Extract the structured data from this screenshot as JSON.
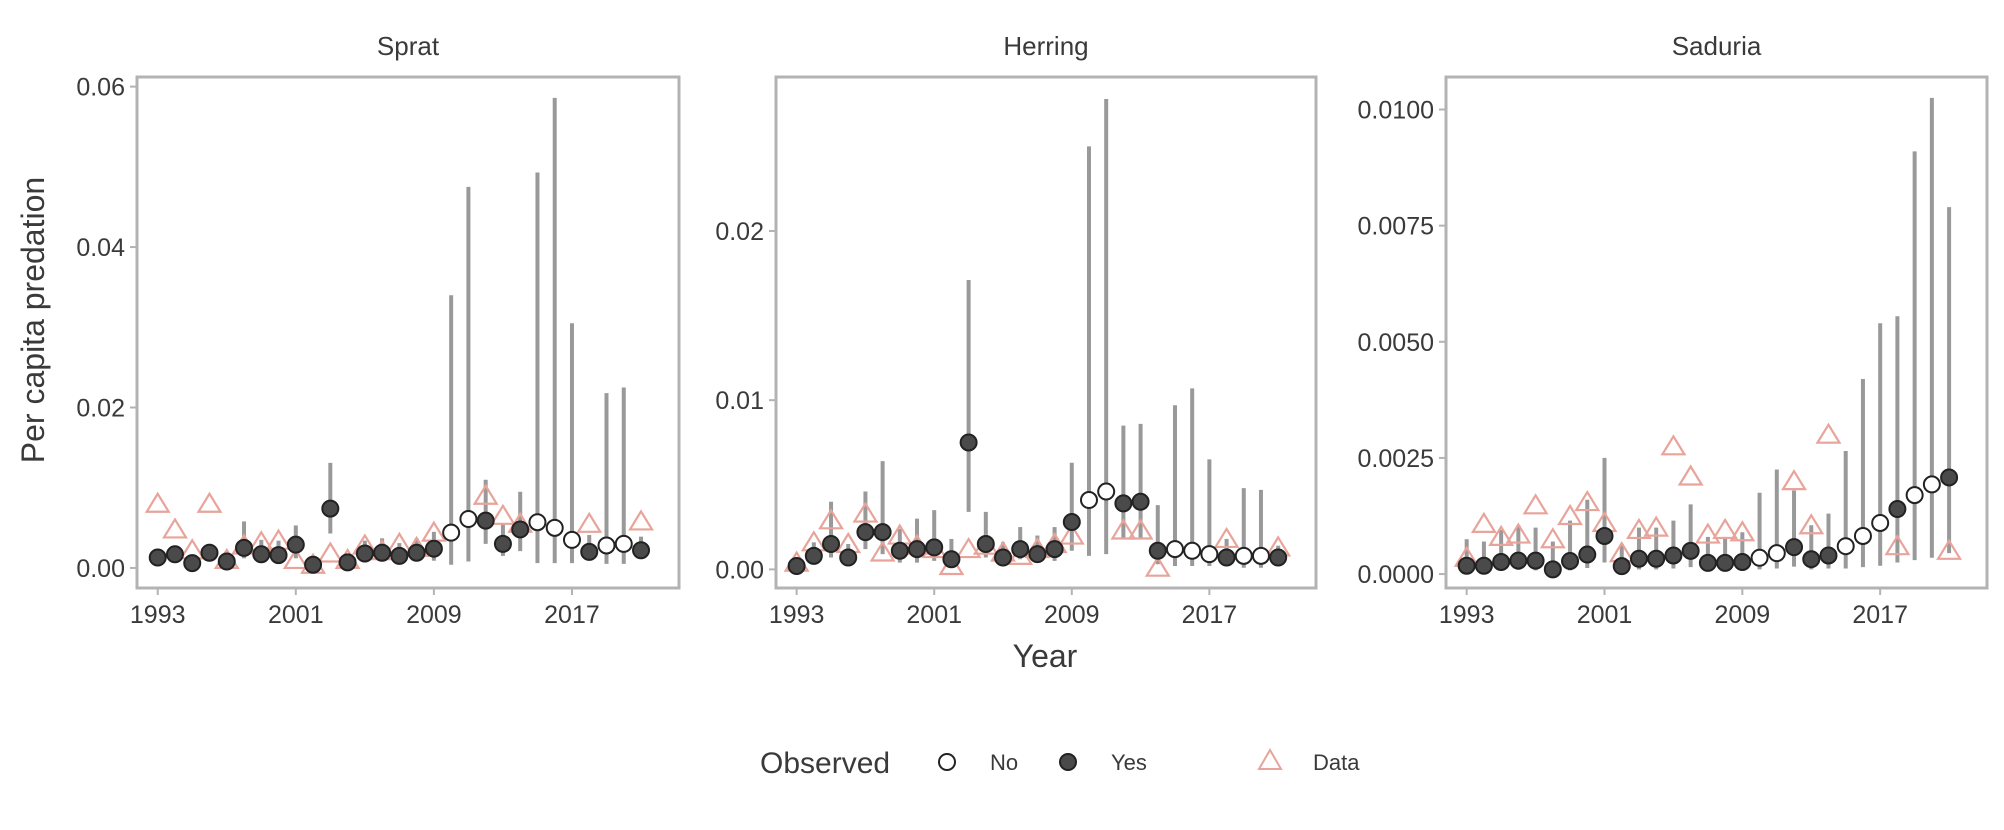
{
  "figure": {
    "x_label": "Year",
    "y_label": "Per capita predation"
  },
  "legend": {
    "title": "Observed",
    "items": [
      {
        "label": "No",
        "key": "no"
      },
      {
        "label": "Yes",
        "key": "yes"
      },
      {
        "label": "Data",
        "key": "data"
      }
    ]
  },
  "colors": {
    "estimate_fill_yes": "#4a4a4a",
    "estimate_stroke": "#222222",
    "error_bar": "#999999",
    "data_triangle": "#e8a49a",
    "panel_border": "#b3b3b3",
    "text": "#3a3a3a"
  },
  "chart_data": [
    {
      "type": "scatter",
      "title": "Sprat",
      "xlim": [
        1991.8,
        2023.2
      ],
      "ylim": [
        -0.0025,
        0.0612
      ],
      "x_ticks": [
        1993,
        2001,
        2009,
        2017
      ],
      "y_ticks": [
        0.0,
        0.02,
        0.04,
        0.06
      ],
      "y_tick_labels": [
        "0.00",
        "0.02",
        "0.04",
        "0.06"
      ],
      "years": [
        1993,
        1994,
        1995,
        1996,
        1997,
        1998,
        1999,
        2000,
        2001,
        2002,
        2003,
        2004,
        2005,
        2006,
        2007,
        2008,
        2009,
        2010,
        2011,
        2012,
        2013,
        2014,
        2015,
        2016,
        2017,
        2018,
        2019,
        2020,
        2021
      ],
      "estimate": [
        0.0013,
        0.0017,
        0.0006,
        0.0019,
        0.0008,
        0.0025,
        0.0017,
        0.0016,
        0.0029,
        0.0004,
        0.0074,
        0.0007,
        0.0018,
        0.0019,
        0.0015,
        0.0019,
        0.0024,
        0.0044,
        0.0061,
        0.0059,
        0.003,
        0.0048,
        0.0057,
        0.005,
        0.0035,
        0.002,
        0.0028,
        0.003,
        0.0022
      ],
      "lower": [
        0.0007,
        0.0009,
        0.0002,
        0.001,
        0.0004,
        0.0012,
        0.0008,
        0.0007,
        0.0012,
        0.0001,
        0.0043,
        0.0002,
        0.0007,
        0.0008,
        0.0006,
        0.0008,
        0.0009,
        0.0004,
        0.0008,
        0.003,
        0.0015,
        0.0021,
        0.0006,
        0.0006,
        0.0006,
        0.001,
        0.0005,
        0.0005,
        0.0011
      ],
      "upper": [
        0.0022,
        0.0028,
        0.0013,
        0.003,
        0.0017,
        0.0058,
        0.0035,
        0.0034,
        0.0053,
        0.0013,
        0.0131,
        0.0016,
        0.0034,
        0.0037,
        0.0031,
        0.0037,
        0.0045,
        0.034,
        0.0475,
        0.011,
        0.0055,
        0.0095,
        0.0493,
        0.0586,
        0.0305,
        0.0041,
        0.0218,
        0.0225,
        0.0039
      ],
      "observed": [
        true,
        true,
        true,
        true,
        true,
        true,
        true,
        true,
        true,
        true,
        true,
        true,
        true,
        true,
        true,
        true,
        true,
        false,
        false,
        true,
        true,
        true,
        false,
        false,
        false,
        true,
        false,
        false,
        true
      ],
      "data_values": [
        0.008,
        0.0048,
        0.0022,
        0.008,
        0.001,
        0.0028,
        0.0032,
        0.0034,
        0.001,
        0.0004,
        0.0018,
        0.001,
        0.0028,
        0.0021,
        0.003,
        0.0025,
        0.0044,
        null,
        null,
        0.009,
        0.0065,
        0.0055,
        null,
        null,
        null,
        0.0055,
        null,
        null,
        0.0058
      ]
    },
    {
      "type": "scatter",
      "title": "Herring",
      "xlim": [
        1991.8,
        2023.2
      ],
      "ylim": [
        -0.0011,
        0.0291
      ],
      "x_ticks": [
        1993,
        2001,
        2009,
        2017
      ],
      "y_ticks": [
        0.0,
        0.01,
        0.02
      ],
      "y_tick_labels": [
        "0.00",
        "0.01",
        "0.02"
      ],
      "years": [
        1993,
        1994,
        1995,
        1996,
        1997,
        1998,
        1999,
        2000,
        2001,
        2002,
        2003,
        2004,
        2005,
        2006,
        2007,
        2008,
        2009,
        2010,
        2011,
        2012,
        2013,
        2014,
        2015,
        2016,
        2017,
        2018,
        2019,
        2020,
        2021
      ],
      "estimate": [
        0.0002,
        0.0008,
        0.0015,
        0.0007,
        0.0022,
        0.0022,
        0.0011,
        0.0012,
        0.0013,
        0.0006,
        0.0075,
        0.0015,
        0.0007,
        0.0012,
        0.0009,
        0.0012,
        0.0028,
        0.0041,
        0.0046,
        0.0039,
        0.004,
        0.0011,
        0.0012,
        0.0011,
        0.0009,
        0.0007,
        0.0008,
        0.0008,
        0.0007
      ],
      "lower": [
        0.0,
        0.0003,
        0.0007,
        0.0002,
        0.0012,
        0.0009,
        0.0004,
        0.0004,
        0.0005,
        0.0002,
        0.0034,
        0.0007,
        0.0002,
        0.0006,
        0.0004,
        0.0005,
        0.0011,
        0.0008,
        0.0009,
        0.0018,
        0.0018,
        0.0003,
        0.0002,
        0.0002,
        0.0002,
        0.0002,
        0.0001,
        0.0001,
        0.0003
      ],
      "upper": [
        0.0005,
        0.0016,
        0.004,
        0.0015,
        0.0046,
        0.0064,
        0.0024,
        0.003,
        0.0035,
        0.0018,
        0.0171,
        0.0034,
        0.0016,
        0.0025,
        0.002,
        0.0025,
        0.0063,
        0.025,
        0.0278,
        0.0085,
        0.0086,
        0.0038,
        0.0097,
        0.0107,
        0.0065,
        0.0018,
        0.0048,
        0.0047,
        0.0014
      ],
      "observed": [
        true,
        true,
        true,
        true,
        true,
        true,
        true,
        true,
        true,
        true,
        true,
        true,
        true,
        true,
        true,
        true,
        true,
        false,
        false,
        true,
        true,
        true,
        false,
        false,
        false,
        true,
        false,
        false,
        true
      ],
      "data_values": [
        0.0004,
        0.0016,
        0.0029,
        0.0015,
        0.0033,
        0.001,
        0.002,
        0.0014,
        0.0012,
        0.0002,
        0.0012,
        0.0014,
        0.001,
        0.0008,
        0.0012,
        0.0015,
        0.002,
        null,
        null,
        0.0023,
        0.0023,
        0.0001,
        null,
        null,
        null,
        0.0018,
        null,
        null,
        0.0013
      ]
    },
    {
      "type": "scatter",
      "title": "Saduria",
      "xlim": [
        1991.8,
        2023.2
      ],
      "ylim": [
        -0.0003,
        0.0107
      ],
      "x_ticks": [
        1993,
        2001,
        2009,
        2017
      ],
      "y_ticks": [
        0.0,
        0.0025,
        0.005,
        0.0075,
        0.01
      ],
      "y_tick_labels": [
        "0.0000",
        "0.0025",
        "0.0050",
        "0.0075",
        "0.0100"
      ],
      "years": [
        1993,
        1994,
        1995,
        1996,
        1997,
        1998,
        1999,
        2000,
        2001,
        2002,
        2003,
        2004,
        2005,
        2006,
        2007,
        2008,
        2009,
        2010,
        2011,
        2012,
        2013,
        2014,
        2015,
        2016,
        2017,
        2018,
        2019,
        2020,
        2021
      ],
      "estimate": [
        0.00018,
        0.00018,
        0.00026,
        0.00029,
        0.00029,
        0.0001,
        0.00028,
        0.00042,
        0.00082,
        0.00017,
        0.00033,
        0.00033,
        0.0004,
        0.0005,
        0.00024,
        0.00024,
        0.00026,
        0.00035,
        0.00045,
        0.00058,
        0.00032,
        0.0004,
        0.0006,
        0.00082,
        0.0011,
        0.0014,
        0.0017,
        0.00193,
        0.00208
      ],
      "lower": [
        5e-05,
        5e-05,
        8e-05,
        9e-05,
        8e-05,
        2e-05,
        8e-05,
        0.00013,
        0.00025,
        5e-05,
        0.0001,
        0.0001,
        0.00012,
        0.00015,
        7e-05,
        7e-05,
        8e-05,
        0.0001,
        0.00012,
        0.00016,
        0.0001,
        0.00012,
        0.00012,
        0.00015,
        0.00018,
        0.00025,
        0.0003,
        0.00035,
        0.00045
      ],
      "upper": [
        0.00075,
        0.0007,
        0.00095,
        0.00105,
        0.001,
        0.0007,
        0.00115,
        0.0016,
        0.0025,
        0.00065,
        0.001,
        0.001,
        0.00115,
        0.0015,
        0.0008,
        0.0008,
        0.0009,
        0.00175,
        0.00225,
        0.0018,
        0.00105,
        0.0013,
        0.00265,
        0.0042,
        0.0054,
        0.00555,
        0.0091,
        0.01025,
        0.0079
      ],
      "observed": [
        true,
        true,
        true,
        true,
        true,
        true,
        true,
        true,
        true,
        true,
        true,
        true,
        true,
        true,
        true,
        true,
        true,
        false,
        false,
        true,
        true,
        true,
        false,
        false,
        false,
        true,
        false,
        false,
        true
      ],
      "data_values": [
        0.00035,
        0.00108,
        0.0008,
        0.00085,
        0.00148,
        0.00075,
        0.00125,
        0.00155,
        0.0011,
        0.00045,
        0.00095,
        0.001,
        0.00275,
        0.0021,
        0.00085,
        0.00095,
        0.0009,
        null,
        null,
        0.002,
        0.00105,
        0.003,
        null,
        null,
        null,
        0.0006,
        null,
        null,
        0.0005
      ]
    }
  ]
}
